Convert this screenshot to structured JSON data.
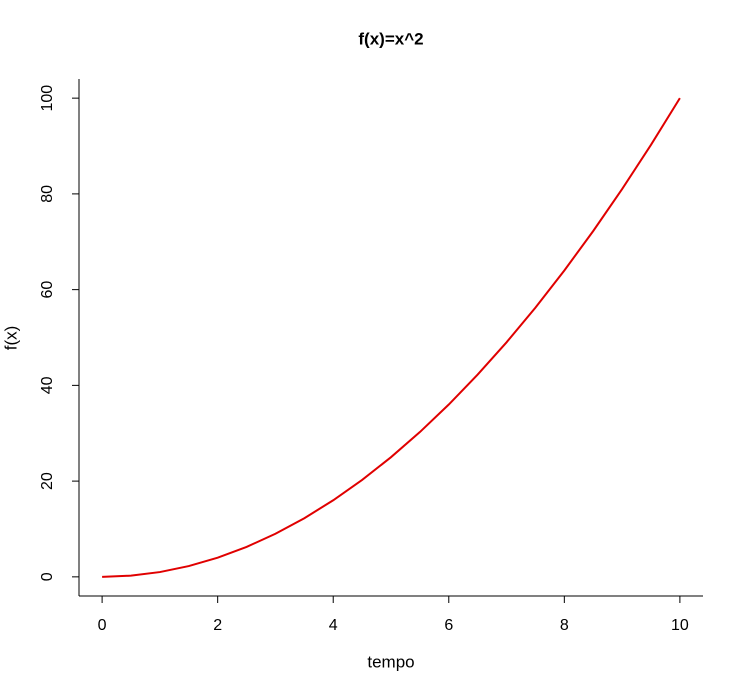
{
  "chart_data": {
    "type": "line",
    "title": "f(x)=x^2",
    "x_label": "tempo",
    "y_label": "f(x)",
    "x": [
      0,
      0.5,
      1,
      1.5,
      2,
      2.5,
      3,
      3.5,
      4,
      4.5,
      5,
      5.5,
      6,
      6.5,
      7,
      7.5,
      8,
      8.5,
      9,
      9.5,
      10
    ],
    "values": [
      0,
      0.25,
      1,
      2.25,
      4,
      6.25,
      9,
      12.25,
      16,
      20.25,
      25,
      30.25,
      36,
      42.25,
      49,
      56.25,
      64,
      72.25,
      81,
      90.25,
      100
    ],
    "color": "#e00000",
    "xlim": [
      -0.4,
      10.4
    ],
    "xticks": [
      0,
      2,
      4,
      6,
      8,
      10
    ],
    "ylim": [
      -4,
      104
    ],
    "yticks": [
      0,
      20,
      40,
      60,
      80,
      100
    ]
  }
}
